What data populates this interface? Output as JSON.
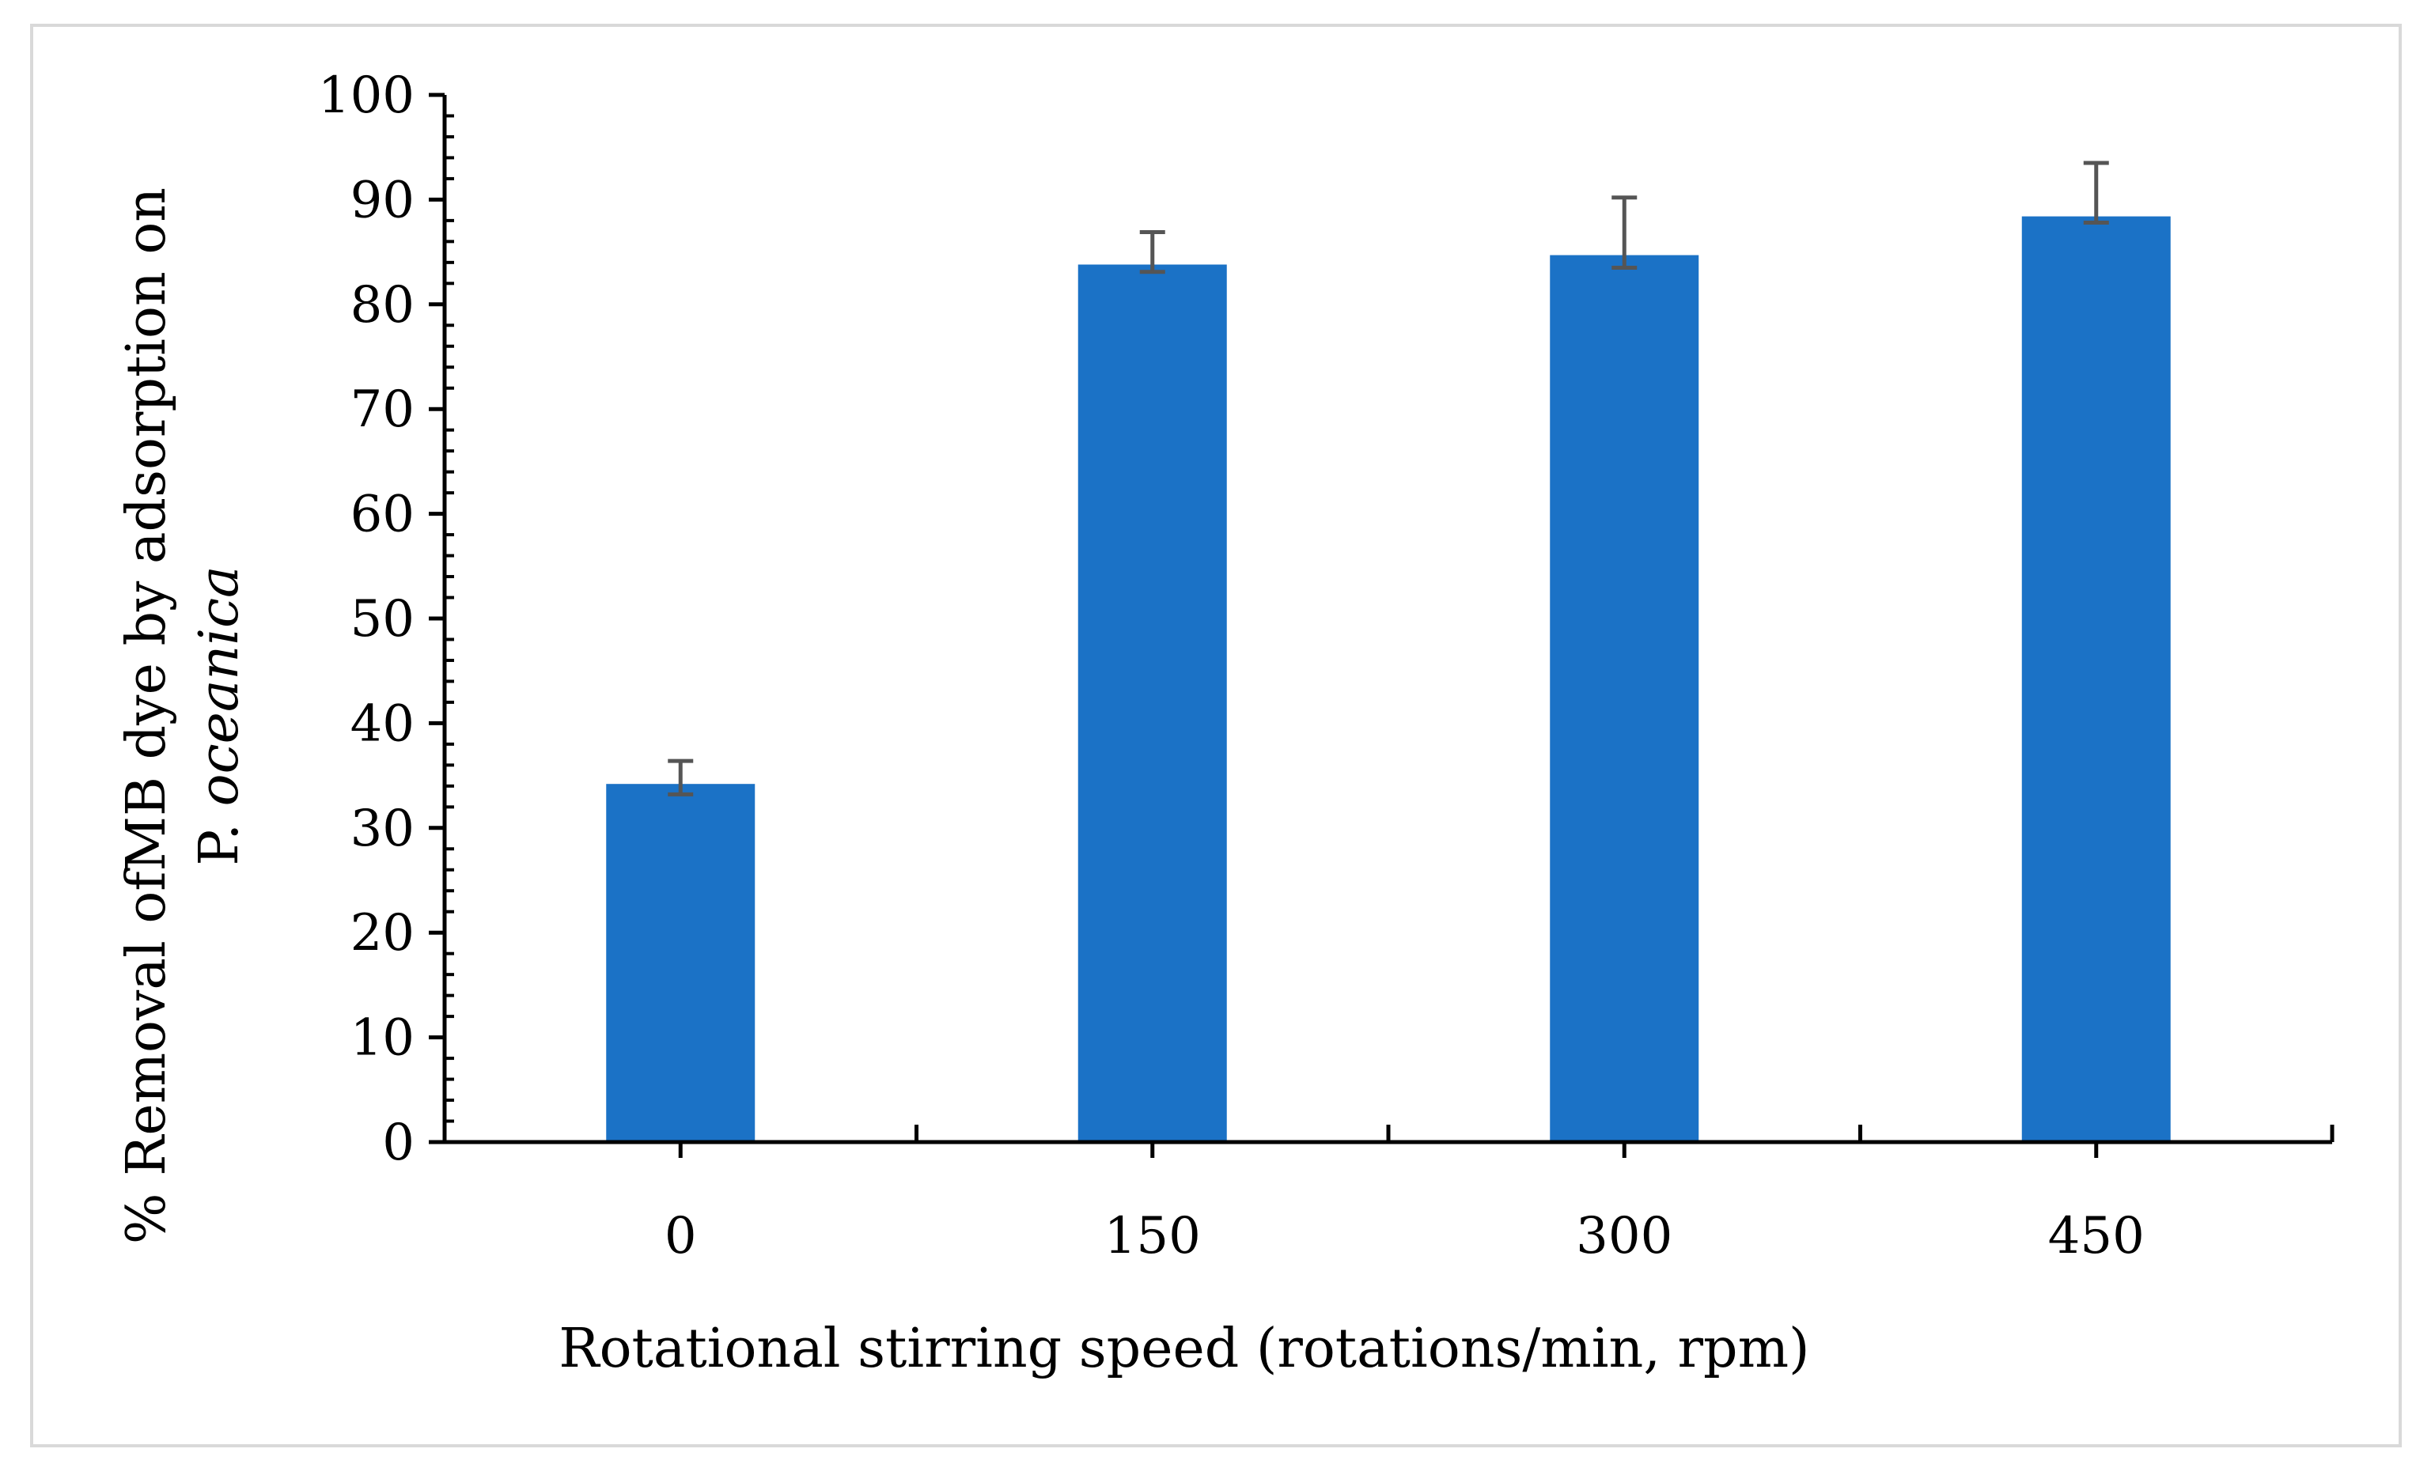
{
  "chart_data": {
    "type": "bar",
    "categories": [
      "0",
      "150",
      "300",
      "450"
    ],
    "series": [
      {
        "name": "% Removal of MB dye",
        "values": [
          34.2,
          83.8,
          84.7,
          88.4
        ],
        "error_low": [
          1.0,
          0.7,
          1.2,
          0.6
        ],
        "error_high": [
          2.2,
          3.1,
          5.5,
          5.1
        ],
        "color": "#1b72c6"
      }
    ],
    "xlabel": "Rotational stirring speed (rotations/min, rpm)",
    "ylabel_line1": "% Removal ofMB dye by adsorption on",
    "ylabel_line2_prefix": "P. ",
    "ylabel_line2_italic": "oceanica",
    "ylim": [
      0,
      100
    ],
    "yticks": [
      "0",
      "10",
      "20",
      "30",
      "40",
      "50",
      "60",
      "70",
      "80",
      "90",
      "100"
    ],
    "grid": false,
    "error_bar_color": "#555555",
    "frame_color": "#d9d9d9"
  }
}
